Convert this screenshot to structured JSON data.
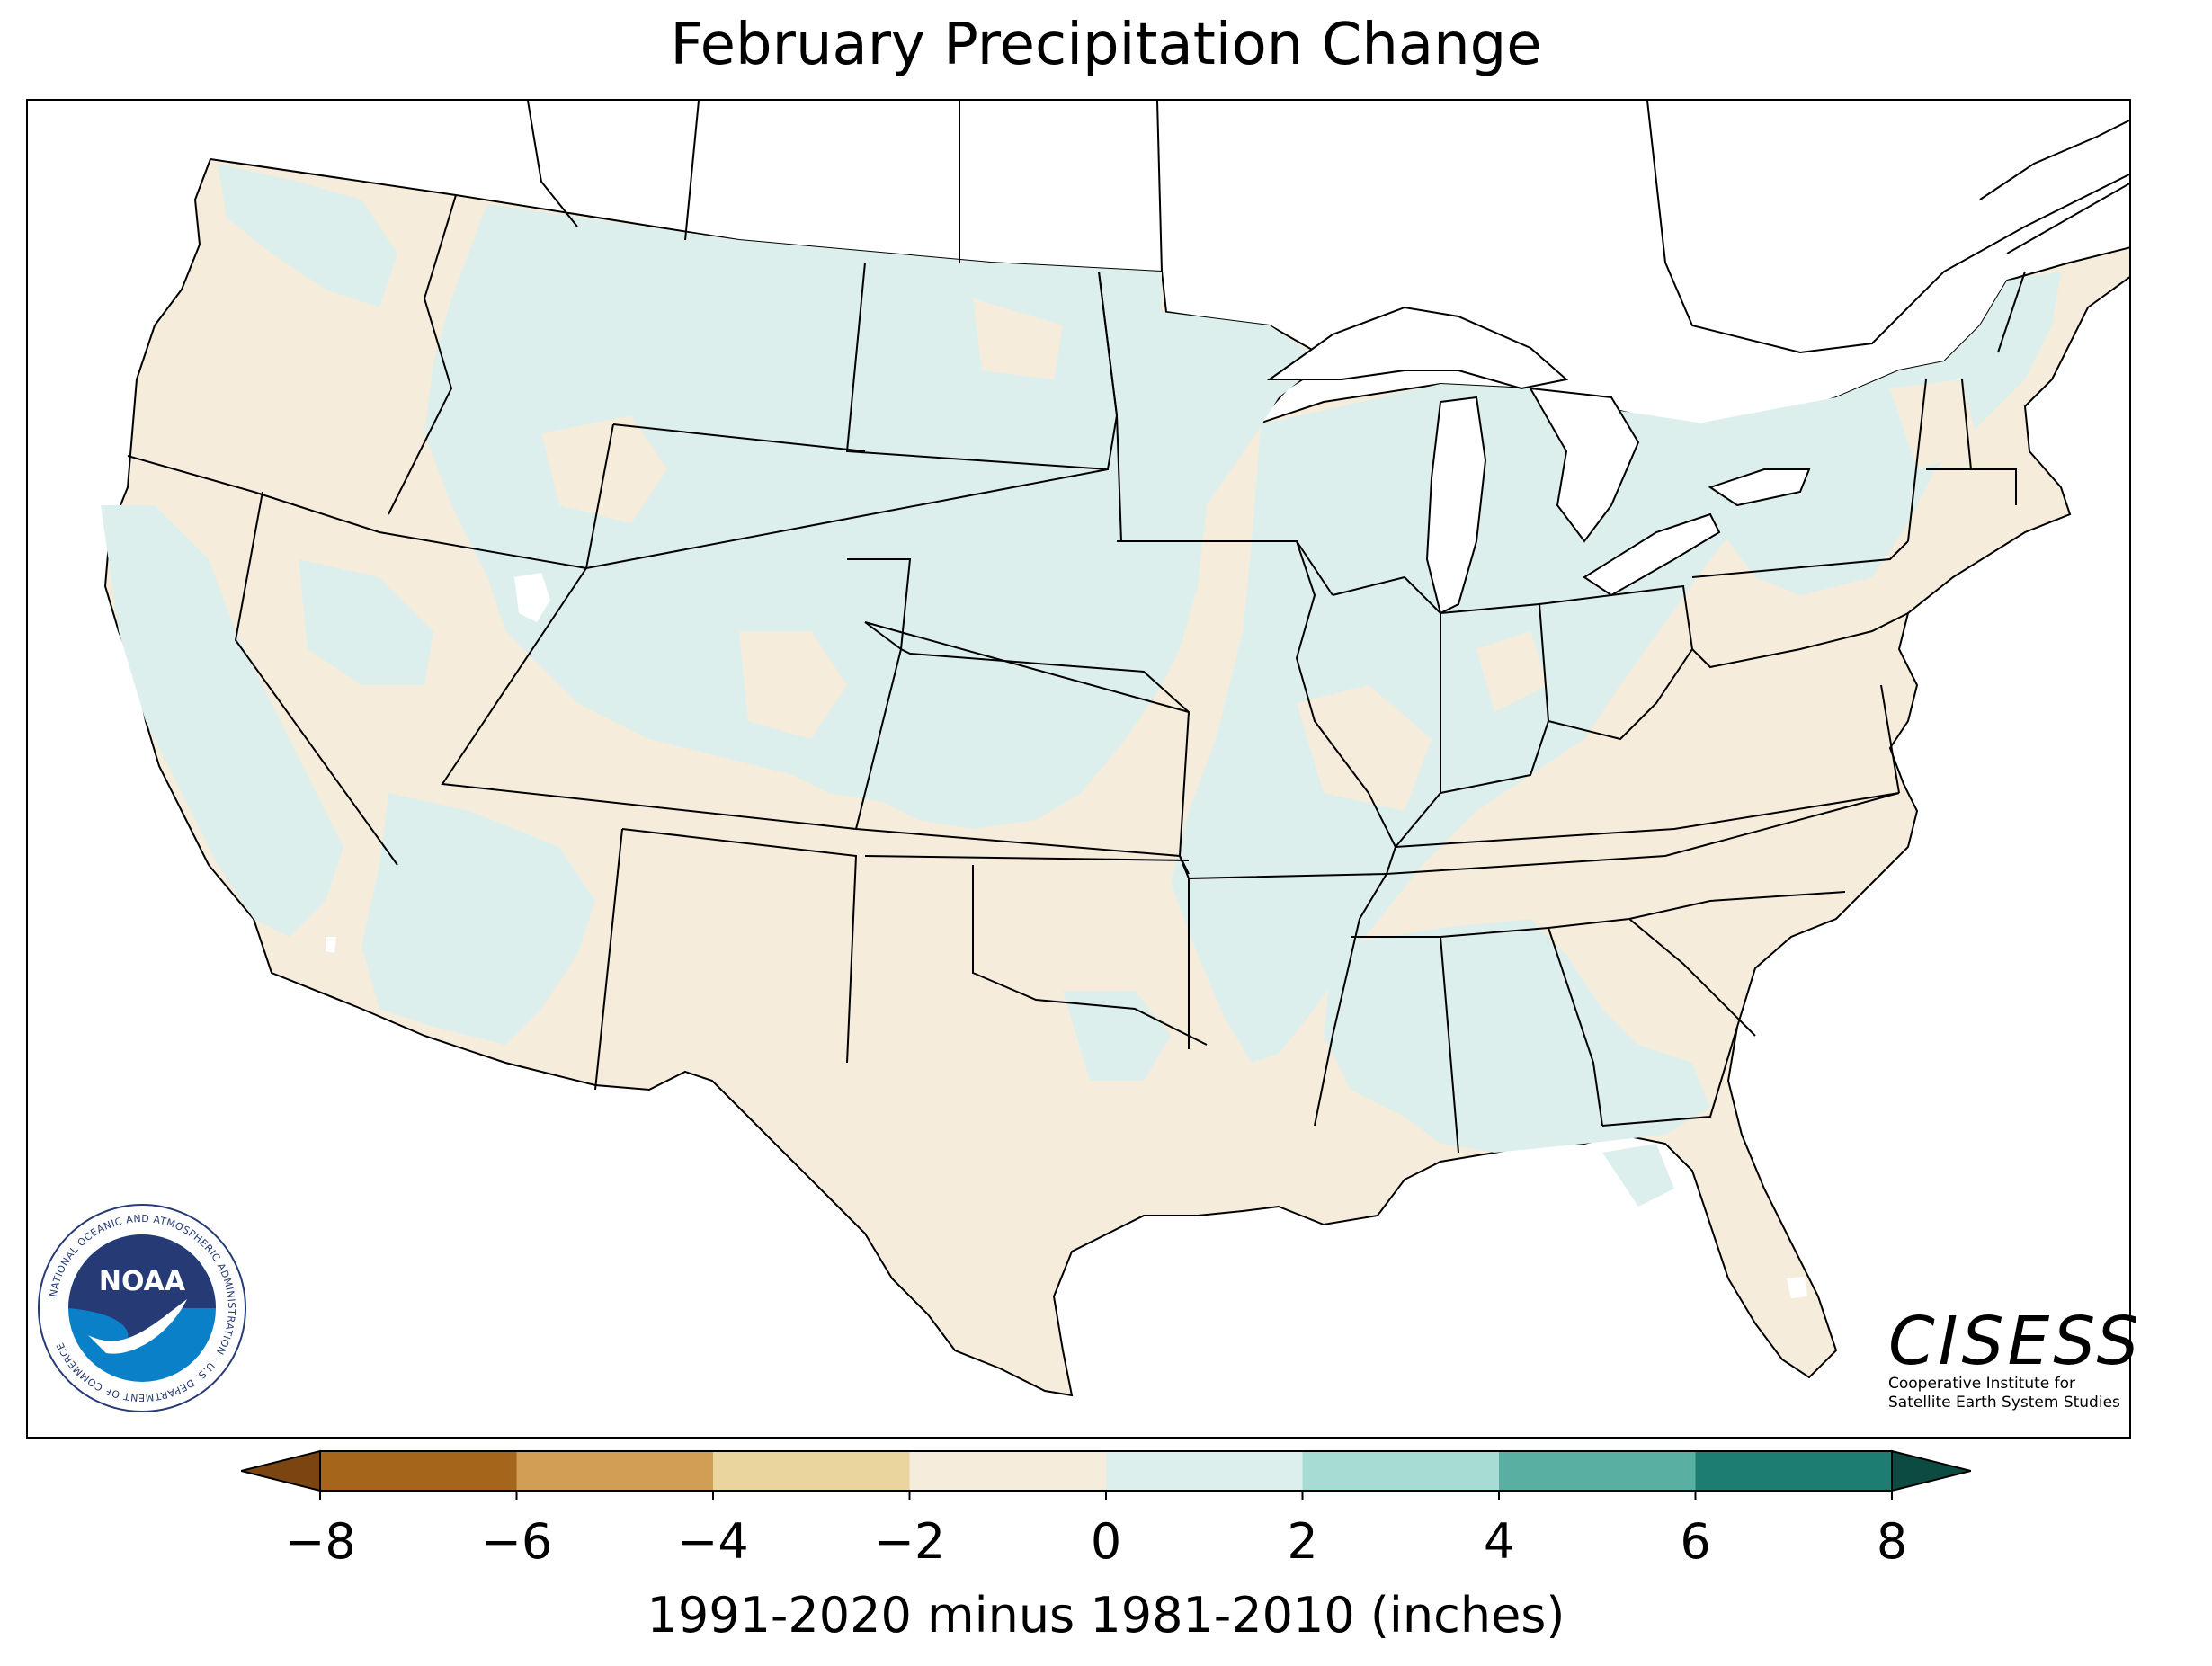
{
  "title": "February Precipitation Change",
  "colorbar": {
    "label": "1991-2020 minus 1981-2010 (inches)",
    "ticks": [
      "−8",
      "−6",
      "−4",
      "−2",
      "0",
      "2",
      "4",
      "6",
      "8"
    ],
    "bins": [
      {
        "range": "-8 to -6",
        "color": "#a5661b"
      },
      {
        "range": "-6 to -4",
        "color": "#d19e55"
      },
      {
        "range": "-4 to -2",
        "color": "#ebd59f"
      },
      {
        "range": "-2 to 0",
        "color": "#f5ecdc"
      },
      {
        "range": "0 to 2",
        "color": "#ddefed"
      },
      {
        "range": "2 to 4",
        "color": "#a7dcd4"
      },
      {
        "range": "4 to 6",
        "color": "#5aafa3"
      },
      {
        "range": "6 to 8",
        "color": "#1d7d72"
      }
    ],
    "extend_low_color": "#7a4510",
    "extend_high_color": "#0b4b41"
  },
  "legend_colors": {
    "land_drier": "#f5ecdc",
    "land_wetter": "#ddefed",
    "water": "#ffffff",
    "borders": "#000000"
  },
  "noaa_logo": {
    "center_text": "NOAA",
    "ring_text": "NATIONAL OCEANIC AND ATMOSPHERIC ADMINISTRATION · U.S. DEPARTMENT OF COMMERCE",
    "colors": {
      "navy": "#263a75",
      "blue": "#0a80c8"
    }
  },
  "cisess_logo": {
    "name": "CISESS",
    "subtitle_line1": "Cooperative Institute for",
    "subtitle_line2": "Satellite Earth System Studies"
  }
}
